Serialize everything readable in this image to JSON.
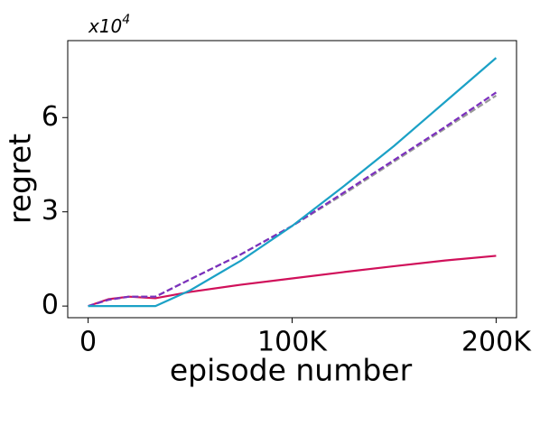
{
  "chart_data": {
    "type": "line",
    "x_label": "episode number",
    "y_label": "regret",
    "y_multiplier": {
      "base": "x10",
      "exponent": "4"
    },
    "x": [
      0,
      10000,
      20000,
      33000,
      50000,
      75000,
      100000,
      125000,
      150000,
      175000,
      200000
    ],
    "series": [
      {
        "color": "#d0105a",
        "dashed": false,
        "values": [
          0,
          0.22,
          0.3,
          0.25,
          0.45,
          0.68,
          0.88,
          1.08,
          1.27,
          1.45,
          1.6
        ]
      },
      {
        "color": "#999999",
        "dashed": true,
        "values": [
          0,
          0.2,
          0.3,
          0.3,
          0.85,
          1.65,
          2.55,
          3.55,
          4.6,
          5.65,
          6.7
        ]
      },
      {
        "color": "#7b2fbe",
        "dashed": true,
        "values": [
          0,
          0.2,
          0.3,
          0.3,
          0.85,
          1.65,
          2.55,
          3.6,
          4.65,
          5.7,
          6.8
        ]
      },
      {
        "color": "#1ba1c6",
        "dashed": false,
        "values": [
          0,
          0,
          0,
          0,
          0.5,
          1.45,
          2.55,
          3.8,
          5.1,
          6.5,
          7.9
        ]
      }
    ],
    "xlim": [
      -10000,
      210000
    ],
    "xticks": [
      0,
      {
        "value": 100000,
        "label": "100K"
      },
      {
        "value": 200000,
        "label": "200K"
      }
    ],
    "ylim": [
      -0.37,
      8.45
    ],
    "yticks": [
      0,
      3,
      6
    ],
    "grid": false
  }
}
